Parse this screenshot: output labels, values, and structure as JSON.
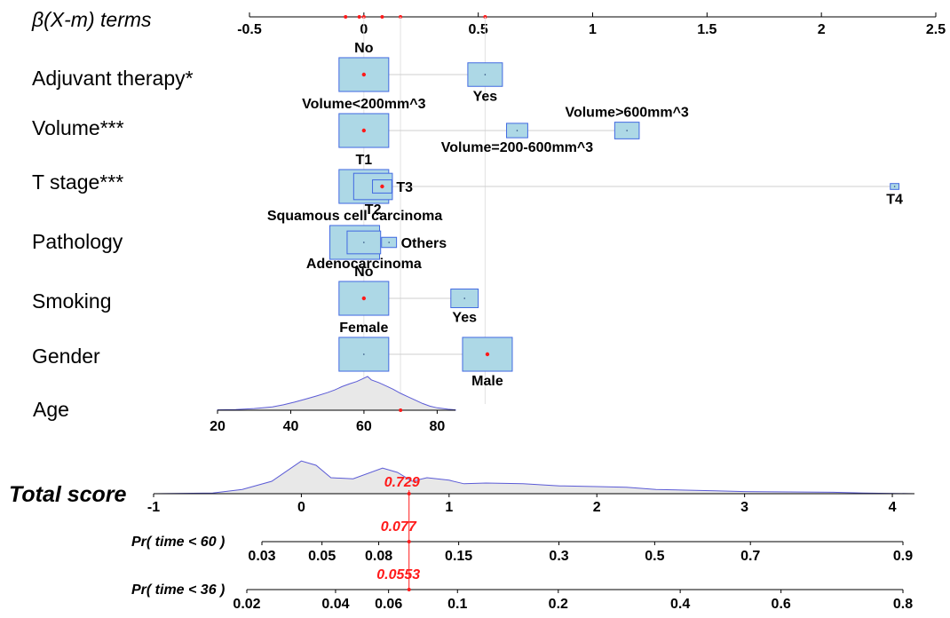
{
  "chart_data": {
    "type": "nomogram",
    "beta_axis": {
      "label": "β(X-m) terms",
      "ticks": [
        "-0.5",
        "0",
        "0.5",
        "1",
        "1.5",
        "2",
        "2.5"
      ],
      "tick_values": [
        -0.5,
        0,
        0.5,
        1,
        1.5,
        2,
        2.5
      ],
      "range": [
        -0.5,
        2.5
      ],
      "marker_values": [
        -0.08,
        -0.02,
        0.0,
        0.08,
        0.16,
        0.53
      ]
    },
    "variables": [
      {
        "name": "Adjuvant therapy*",
        "selected_value": 0.0,
        "levels": [
          {
            "label": "No",
            "value": 0.0,
            "weight": 0.3,
            "selected": true,
            "label_pos": "above"
          },
          {
            "label": "Yes",
            "value": 0.53,
            "weight": 0.16,
            "selected": false,
            "label_pos": "below"
          }
        ]
      },
      {
        "name": "Volume***",
        "selected_value": 0.0,
        "levels": [
          {
            "label": "Volume<200mm^3",
            "value": 0.0,
            "weight": 0.3,
            "selected": true,
            "label_pos": "above"
          },
          {
            "label": "Volume=200-600mm^3",
            "value": 0.67,
            "weight": 0.06,
            "selected": false,
            "label_pos": "below"
          },
          {
            "label": "Volume>600mm^3",
            "value": 1.15,
            "weight": 0.08,
            "selected": false,
            "label_pos": "above"
          }
        ]
      },
      {
        "name": "T stage***",
        "selected_value": 0.08,
        "levels": [
          {
            "label": "T1",
            "value": 0.0,
            "weight": 0.3,
            "selected": false,
            "label_pos": "above"
          },
          {
            "label": "T2",
            "value": 0.04,
            "weight": 0.2,
            "selected": false,
            "label_pos": "below"
          },
          {
            "label": "T3",
            "value": 0.08,
            "weight": 0.05,
            "selected": true,
            "label_pos": "right"
          },
          {
            "label": "T4",
            "value": 2.32,
            "weight": 0.01,
            "selected": false,
            "label_pos": "below"
          }
        ]
      },
      {
        "name": "Pathology",
        "selected_value": -0.04,
        "levels": [
          {
            "label": "Squamous cell carcinoma",
            "value": -0.04,
            "weight": 0.3,
            "selected": true,
            "label_pos": "above"
          },
          {
            "label": "Adenocarcinoma",
            "value": 0.0,
            "weight": 0.15,
            "selected": false,
            "label_pos": "below"
          },
          {
            "label": "Others",
            "value": 0.11,
            "weight": 0.03,
            "selected": false,
            "label_pos": "right"
          }
        ]
      },
      {
        "name": "Smoking",
        "selected_value": 0.0,
        "levels": [
          {
            "label": "No",
            "value": 0.0,
            "weight": 0.3,
            "selected": true,
            "label_pos": "above"
          },
          {
            "label": "Yes",
            "value": 0.44,
            "weight": 0.1,
            "selected": false,
            "label_pos": "below"
          }
        ]
      },
      {
        "name": "Gender",
        "selected_value": 0.54,
        "levels": [
          {
            "label": "Female",
            "value": 0.0,
            "weight": 0.3,
            "selected": false,
            "label_pos": "above"
          },
          {
            "label": "Male",
            "value": 0.54,
            "weight": 0.33,
            "selected": true,
            "label_pos": "below"
          }
        ]
      }
    ],
    "age": {
      "name": "Age",
      "ticks": [
        "20",
        "40",
        "60",
        "80"
      ],
      "tick_values": [
        20,
        40,
        60,
        80
      ],
      "range": [
        20,
        85
      ],
      "selected_value": 70,
      "density": [
        [
          20,
          0.01
        ],
        [
          25,
          0.02
        ],
        [
          30,
          0.05
        ],
        [
          35,
          0.1
        ],
        [
          38,
          0.16
        ],
        [
          41,
          0.24
        ],
        [
          44,
          0.33
        ],
        [
          47,
          0.42
        ],
        [
          50,
          0.52
        ],
        [
          52,
          0.6
        ],
        [
          54,
          0.7
        ],
        [
          56,
          0.78
        ],
        [
          58,
          0.85
        ],
        [
          60,
          0.95
        ],
        [
          61,
          1.0
        ],
        [
          62,
          0.9
        ],
        [
          64,
          0.82
        ],
        [
          66,
          0.72
        ],
        [
          68,
          0.62
        ],
        [
          70,
          0.5
        ],
        [
          72,
          0.4
        ],
        [
          74,
          0.3
        ],
        [
          76,
          0.2
        ],
        [
          78,
          0.12
        ],
        [
          80,
          0.07
        ],
        [
          83,
          0.03
        ],
        [
          85,
          0.01
        ]
      ]
    },
    "total_score": {
      "name": "Total score",
      "ticks": [
        "-1",
        "0",
        "1",
        "2",
        "3",
        "4"
      ],
      "tick_values": [
        -1,
        0,
        1,
        2,
        3,
        4
      ],
      "range": [
        -1,
        4.15
      ],
      "value": 0.729,
      "value_label": "0.729",
      "density": [
        [
          -1,
          0.0
        ],
        [
          -0.6,
          0.02
        ],
        [
          -0.4,
          0.12
        ],
        [
          -0.2,
          0.35
        ],
        [
          0,
          0.92
        ],
        [
          0.1,
          0.8
        ],
        [
          0.2,
          0.45
        ],
        [
          0.35,
          0.42
        ],
        [
          0.55,
          0.72
        ],
        [
          0.65,
          0.6
        ],
        [
          0.75,
          0.35
        ],
        [
          0.85,
          0.45
        ],
        [
          1.0,
          0.38
        ],
        [
          1.1,
          0.28
        ],
        [
          1.25,
          0.3
        ],
        [
          1.5,
          0.28
        ],
        [
          1.75,
          0.22
        ],
        [
          2.0,
          0.2
        ],
        [
          2.2,
          0.18
        ],
        [
          2.4,
          0.12
        ],
        [
          2.6,
          0.1
        ],
        [
          2.8,
          0.08
        ],
        [
          3.0,
          0.06
        ],
        [
          3.3,
          0.05
        ],
        [
          3.6,
          0.04
        ],
        [
          3.8,
          0.02
        ],
        [
          4.15,
          0.0
        ]
      ]
    },
    "probabilities": [
      {
        "name": "Pr( time < 60 )",
        "ticks": [
          "0.03",
          "0.05",
          "0.08",
          "0.15",
          "0.3",
          "0.5",
          "0.7",
          "0.9"
        ],
        "tick_values": [
          0.03,
          0.05,
          0.08,
          0.15,
          0.3,
          0.5,
          0.7,
          0.9
        ],
        "value": 0.077,
        "value_label": "0.077"
      },
      {
        "name": "Pr( time < 36 )",
        "ticks": [
          "0.02",
          "0.04",
          "0.06",
          "0.1",
          "0.2",
          "0.4",
          "0.6",
          "0.8"
        ],
        "tick_values": [
          0.02,
          0.04,
          0.06,
          0.1,
          0.2,
          0.4,
          0.6,
          0.8
        ],
        "value": 0.0553,
        "value_label": "0.0553"
      }
    ],
    "colors": {
      "box_fill": "#add8e6",
      "box_stroke": "#4169e1",
      "density_line": "#5b5bd6",
      "density_fill": "#e8e8e8",
      "marker": "#ff1a1a",
      "connector": "#cfcfcf"
    }
  }
}
